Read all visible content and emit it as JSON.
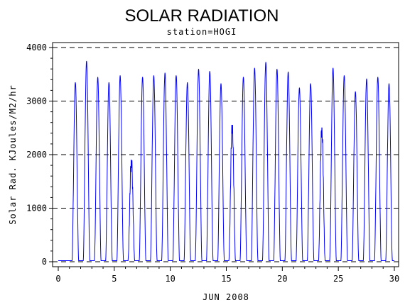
{
  "chart_data": {
    "type": "line",
    "title": "SOLAR RADIATION",
    "subtitle": "station=HOGI",
    "xlabel": "JUN 2008",
    "ylabel": "Solar Rad. KJoules/M2/hr",
    "xlim": [
      0,
      30
    ],
    "ylim": [
      0,
      4000
    ],
    "x_ticks": [
      0,
      5,
      10,
      15,
      20,
      25,
      30
    ],
    "y_ticks": [
      0,
      1000,
      2000,
      3000,
      4000
    ],
    "grid": "horizontal dashed",
    "line_color": "#0000ff",
    "series": [
      {
        "daily_peaks": [
          {
            "day": 1,
            "peak": 3350
          },
          {
            "day": 2,
            "peak": 3750
          },
          {
            "day": 3,
            "peak": 3450
          },
          {
            "day": 4,
            "peak": 3350
          },
          {
            "day": 5,
            "peak": 3480
          },
          {
            "day": 6,
            "peak": 1900
          },
          {
            "day": 7,
            "peak": 3450
          },
          {
            "day": 8,
            "peak": 3480
          },
          {
            "day": 9,
            "peak": 3530
          },
          {
            "day": 10,
            "peak": 3480
          },
          {
            "day": 11,
            "peak": 3350
          },
          {
            "day": 12,
            "peak": 3600
          },
          {
            "day": 13,
            "peak": 3560
          },
          {
            "day": 14,
            "peak": 3330
          },
          {
            "day": 15,
            "peak": 2550
          },
          {
            "day": 16,
            "peak": 3450
          },
          {
            "day": 17,
            "peak": 3620
          },
          {
            "day": 18,
            "peak": 3730
          },
          {
            "day": 19,
            "peak": 3600
          },
          {
            "day": 20,
            "peak": 3550
          },
          {
            "day": 21,
            "peak": 3250
          },
          {
            "day": 22,
            "peak": 3330
          },
          {
            "day": 23,
            "peak": 2500
          },
          {
            "day": 24,
            "peak": 3620
          },
          {
            "day": 25,
            "peak": 3480
          },
          {
            "day": 26,
            "peak": 3180
          },
          {
            "day": 27,
            "peak": 3420
          },
          {
            "day": 28,
            "peak": 3450
          },
          {
            "day": 29,
            "peak": 3330
          }
        ]
      }
    ]
  }
}
